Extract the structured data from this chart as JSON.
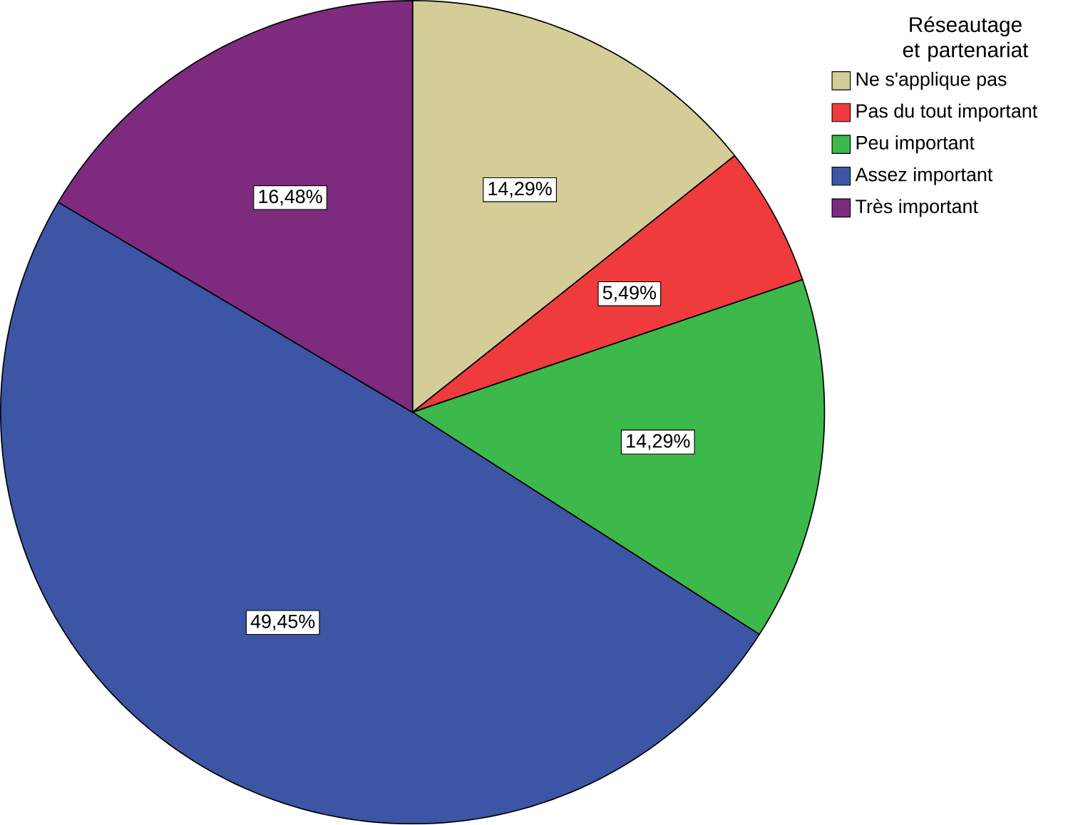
{
  "chart_data": {
    "type": "pie",
    "legend_title": "Réseautage et partenariat",
    "categories": [
      "Ne s'applique pas",
      "Pas du tout important",
      "Peu important",
      "Assez important",
      "Très important"
    ],
    "values": [
      14.29,
      5.49,
      14.29,
      49.45,
      16.48
    ],
    "colors": [
      "#d4cd98",
      "#ef3b3b",
      "#3db84a",
      "#3c55a5",
      "#7d2a7f"
    ],
    "value_labels": [
      "14,29%",
      "5,49%",
      "14,29%",
      "49,45%",
      "16,48%"
    ],
    "legend": "top right"
  }
}
